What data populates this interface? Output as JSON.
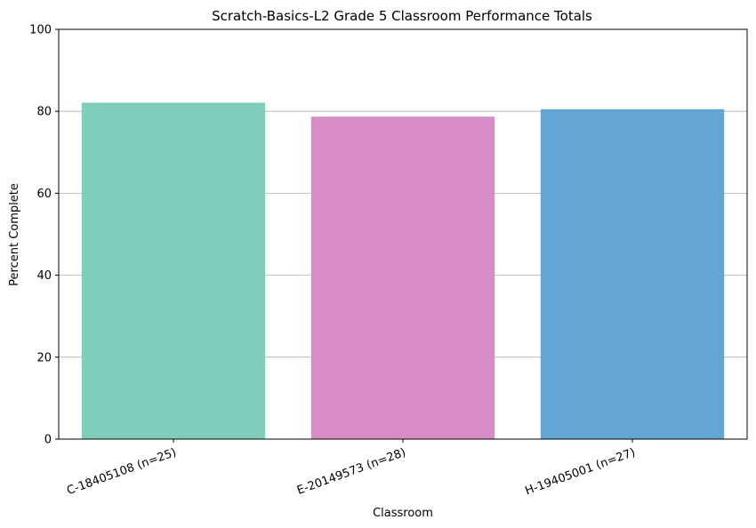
{
  "chart_data": {
    "type": "bar",
    "title": "Scratch-Basics-L2 Grade 5 Classroom Performance Totals",
    "xlabel": "Classroom",
    "ylabel": "Percent Complete",
    "ylim": [
      0,
      100
    ],
    "yticks": [
      "0",
      "20",
      "40",
      "60",
      "80",
      "100"
    ],
    "grid": "y",
    "categories": [
      "C-18405108 (n=25)",
      "E-20149573 (n=28)",
      "H-19405001 (n=27)"
    ],
    "values": [
      82.1,
      78.7,
      80.5
    ],
    "colors": [
      "#7fcebc",
      "#d88cc6",
      "#63a6d4"
    ]
  }
}
